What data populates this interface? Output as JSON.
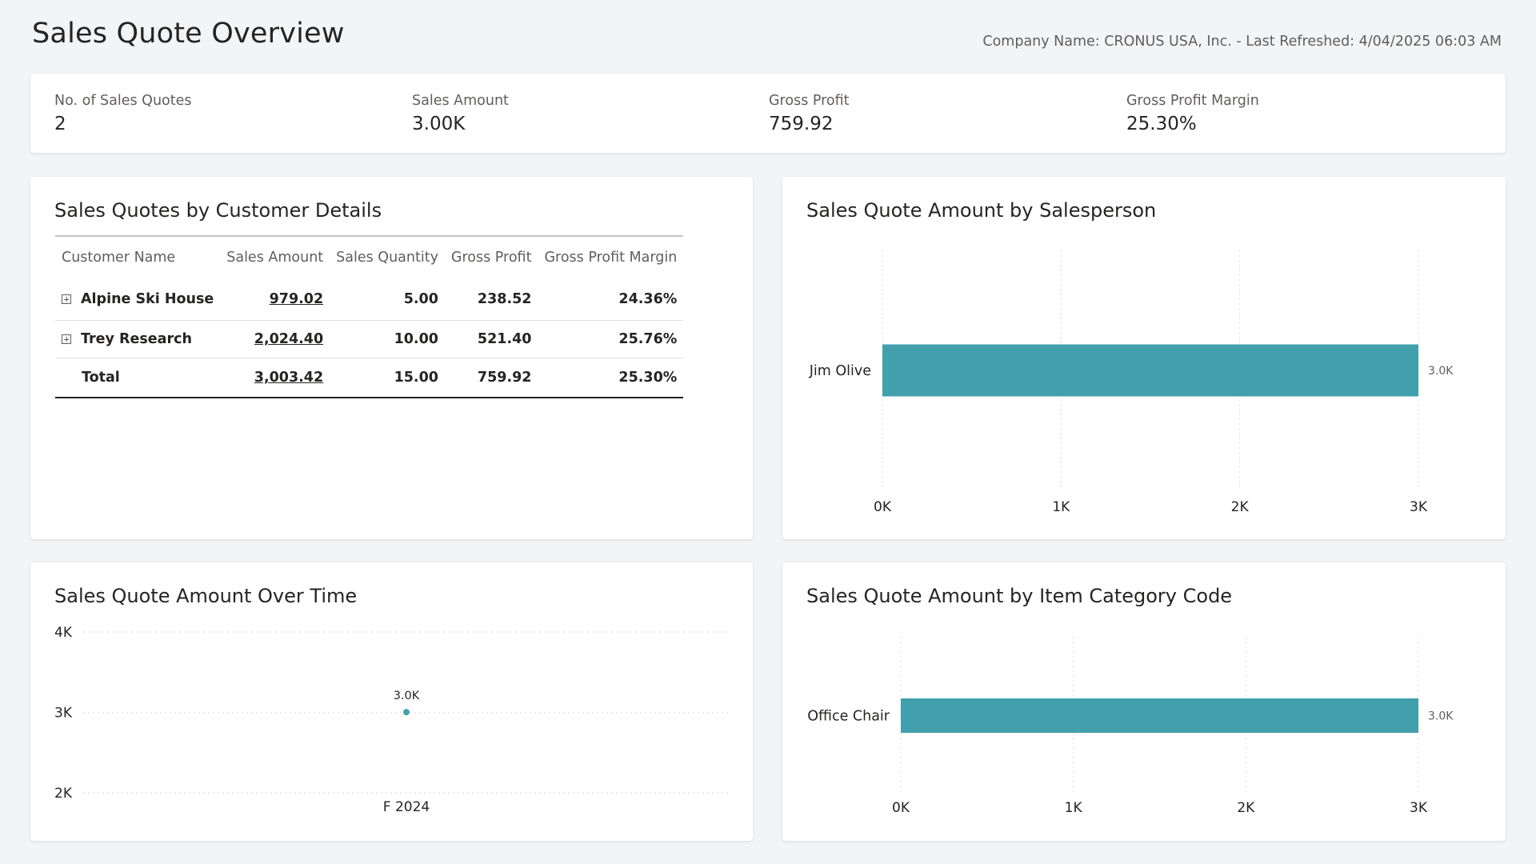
{
  "header": {
    "title": "Sales Quote Overview",
    "meta": "Company Name: CRONUS USA, Inc. - Last Refreshed: 4/04/2025 06:03 AM"
  },
  "kpis": [
    {
      "label": "No. of Sales Quotes",
      "value": "2"
    },
    {
      "label": "Sales Amount",
      "value": "3.00K"
    },
    {
      "label": "Gross Profit",
      "value": "759.92"
    },
    {
      "label": "Gross Profit Margin",
      "value": "25.30%"
    }
  ],
  "customer_table": {
    "title": "Sales Quotes by Customer Details",
    "columns": [
      "Customer Name",
      "Sales Amount",
      "Sales Quantity",
      "Gross Profit",
      "Gross Profit Margin"
    ],
    "rows": [
      {
        "name": "Alpine Ski House",
        "amount": "979.02",
        "quantity": "5.00",
        "profit": "238.52",
        "margin": "24.36%"
      },
      {
        "name": "Trey Research",
        "amount": "2,024.40",
        "quantity": "10.00",
        "profit": "521.40",
        "margin": "25.76%"
      }
    ],
    "total": {
      "name": "Total",
      "amount": "3,003.42",
      "quantity": "15.00",
      "profit": "759.92",
      "margin": "25.30%"
    }
  },
  "colors": {
    "accent": "#42a0ac",
    "grid": "#e1dfdd"
  },
  "chart_data": [
    {
      "type": "bar",
      "orientation": "horizontal",
      "title": "Sales Quote Amount by Salesperson",
      "categories": [
        "Jim Olive"
      ],
      "values": [
        3003.42
      ],
      "data_labels": [
        "3.0K"
      ],
      "xlim": [
        0,
        3000
      ],
      "xticks": [
        0,
        1000,
        2000,
        3000
      ],
      "xtick_labels": [
        "0K",
        "1K",
        "2K",
        "3K"
      ],
      "grid": true
    },
    {
      "type": "line",
      "title": "Sales Quote Amount Over Time",
      "x": [
        "F 2024"
      ],
      "values": [
        3003.42
      ],
      "data_labels": [
        "3.0K"
      ],
      "ylim": [
        2000,
        4000
      ],
      "yticks": [
        2000,
        3000,
        4000
      ],
      "ytick_labels": [
        "2K",
        "3K",
        "4K"
      ],
      "grid": true
    },
    {
      "type": "bar",
      "orientation": "horizontal",
      "title": "Sales Quote Amount by Item Category Code",
      "categories": [
        "Office Chair"
      ],
      "values": [
        3003.42
      ],
      "data_labels": [
        "3.0K"
      ],
      "xlim": [
        0,
        3000
      ],
      "xticks": [
        0,
        1000,
        2000,
        3000
      ],
      "xtick_labels": [
        "0K",
        "1K",
        "2K",
        "3K"
      ],
      "grid": true
    }
  ]
}
